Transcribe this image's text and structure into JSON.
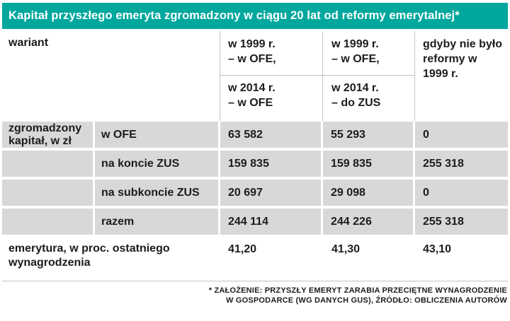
{
  "colors": {
    "teal": "#00a79d",
    "cellgray": "#d8d8d8",
    "line": "#c3c3c3",
    "ink": "#1c1c1c"
  },
  "title": "Kapitał przyszłego emeryta zgromadzony w ciągu 20 lat od reformy emerytalnej*",
  "header": {
    "corner": "wariant",
    "col_a": {
      "top1": "w 1999 r.",
      "top2": "– w OFE,",
      "bot1": "w 2014 r.",
      "bot2": "– w OFE"
    },
    "col_b": {
      "top1": "w 1999 r.",
      "top2": "– w OFE,",
      "bot1": "w 2014 r.",
      "bot2": "– do ZUS"
    },
    "col_c": "gdyby nie było reformy w 1999 r."
  },
  "table": {
    "group_label": "zgromadzony kapitał, w zł",
    "rows": [
      {
        "label": "w OFE",
        "values": [
          "63 582",
          "55 293",
          "0"
        ]
      },
      {
        "label": "na koncie ZUS",
        "values": [
          "159 835",
          "159 835",
          "255 318"
        ]
      },
      {
        "label": "na subkoncie ZUS",
        "values": [
          "20 697",
          "29 098",
          "0"
        ]
      },
      {
        "label": "razem",
        "values": [
          "244 114",
          "244 226",
          "255 318"
        ]
      }
    ],
    "summary": {
      "label": "emerytura, w proc. ostatniego wynagrodzenia",
      "values": [
        "41,20",
        "41,30",
        "43,10"
      ]
    }
  },
  "footnote_line1": "* ZAŁOŻENIE: PRZYSZŁY EMERYT ZARABIA PRZECIĘTNE WYNAGRODZENIE",
  "footnote_line2": "W GOSPODARCE (WG DANYCH GUS), ŹRÓDŁO: OBLICZENIA AUTORÓW",
  "chart_data": {
    "type": "table",
    "title": "Kapitał przyszłego emeryta zgromadzony w ciągu 20 lat od reformy emerytalnej*",
    "columns": [
      "wariant",
      "w 1999 r. – w OFE, w 2014 r. – w OFE",
      "w 1999 r. – w OFE, w 2014 r. – do ZUS",
      "gdyby nie było reformy w 1999 r."
    ],
    "rows": [
      {
        "group": "zgromadzony kapitał, w zł",
        "label": "w OFE",
        "values": [
          63582,
          55293,
          0
        ]
      },
      {
        "group": "zgromadzony kapitał, w zł",
        "label": "na koncie ZUS",
        "values": [
          159835,
          159835,
          255318
        ]
      },
      {
        "group": "zgromadzony kapitał, w zł",
        "label": "na subkoncie ZUS",
        "values": [
          20697,
          29098,
          0
        ]
      },
      {
        "group": "zgromadzony kapitał, w zł",
        "label": "razem",
        "values": [
          244114,
          244226,
          255318
        ]
      },
      {
        "group": "",
        "label": "emerytura, w proc. ostatniego wynagrodzenia",
        "values": [
          41.2,
          41.3,
          43.1
        ]
      }
    ],
    "footnote": "* Założenie: przyszły emeryt zarabia przeciętne wynagrodzenie w gospodarce (wg danych GUS), źródło: obliczenia autorów"
  }
}
